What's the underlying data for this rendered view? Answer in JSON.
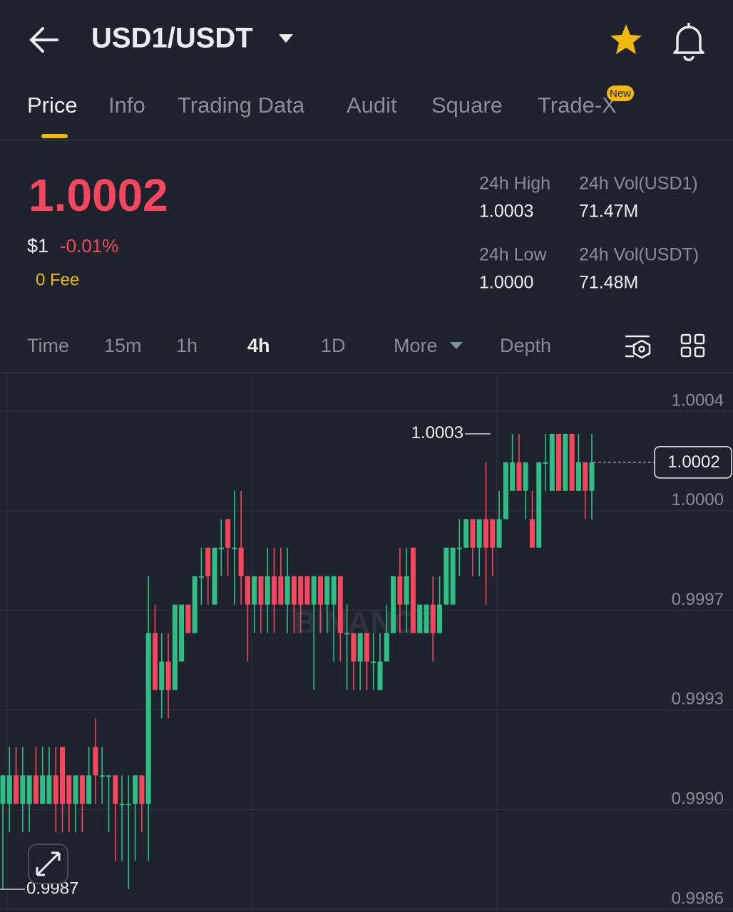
{
  "header": {
    "title": "USD1/USDT"
  },
  "tabs": [
    "Price",
    "Info",
    "Trading Data",
    "Audit",
    "Square",
    "Trade-X"
  ],
  "badge": "New",
  "ticker": {
    "price": "1.0002",
    "usd": "$1",
    "change": "-0.01%",
    "fee": "0 Fee",
    "stats": [
      {
        "label": "24h High",
        "value": "1.0003"
      },
      {
        "label": "24h Vol(USD1)",
        "value": "71.47M"
      },
      {
        "label": "24h Low",
        "value": "1.0000"
      },
      {
        "label": "24h Vol(USDT)",
        "value": "71.48M"
      }
    ]
  },
  "intervals": [
    "Time",
    "15m",
    "1h",
    "4h",
    "1D",
    "More",
    "Depth"
  ],
  "chart_data": {
    "type": "candlestick",
    "watermark": "BINANCE",
    "up_color": "#2ebd85",
    "down_color": "#f6465d",
    "ylim": [
      0.99862,
      1.000515
    ],
    "yticks": [
      {
        "value": 1.00038,
        "label": "1.0004"
      },
      {
        "value": 1.00003,
        "label": "1.0000"
      },
      {
        "value": 0.99968,
        "label": "0.9997"
      },
      {
        "value": 0.99933,
        "label": "0.9993"
      },
      {
        "value": 0.99898,
        "label": "0.9990"
      },
      {
        "value": 0.99863,
        "label": "0.9986"
      }
    ],
    "grid": true,
    "max_label": 1.0003,
    "min_label": 0.9987,
    "last_price": 1.0002,
    "open": [
      0.999,
      0.999,
      0.9991,
      0.999,
      0.999,
      0.9991,
      0.999,
      0.999,
      0.9991,
      0.9992,
      0.9991,
      0.999,
      0.9991,
      0.999,
      0.9992,
      0.9991,
      0.9991,
      0.9991,
      0.999,
      0.999,
      0.999,
      0.9991,
      0.999,
      0.9996,
      0.9994,
      0.9995,
      0.9994,
      0.9995,
      0.9997,
      0.9996,
      0.9998,
      0.9999,
      0.9997,
      0.9999,
      1.0,
      0.9999,
      0.9999,
      0.9998,
      0.9997,
      0.9998,
      0.9997,
      0.9998,
      0.9998,
      0.9997,
      0.9998,
      0.9998,
      0.9998,
      0.9997,
      0.9998,
      0.9997,
      0.9997,
      0.9998,
      0.9996,
      0.9996,
      0.9995,
      0.9996,
      0.9995,
      0.9994,
      0.9995,
      0.9996,
      0.9998,
      0.9997,
      0.9999,
      0.9996,
      0.9996,
      0.9997,
      0.9996,
      0.9997,
      0.9997,
      0.9999,
      0.9999,
      1.0,
      0.9999,
      1.0,
      1.0,
      0.9999,
      1.0,
      1.0001,
      1.0002,
      1.0001,
      1.0,
      0.9999,
      1.0002,
      1.0001,
      1.0003,
      1.0001,
      1.0003,
      1.0001,
      1.0002,
      1.0001
    ],
    "high": [
      0.9991,
      0.9992,
      0.9992,
      0.9992,
      0.9991,
      0.9992,
      0.9992,
      0.9992,
      0.9992,
      0.9992,
      0.9991,
      0.9991,
      0.9991,
      0.9992,
      0.9993,
      0.9992,
      0.9991,
      0.9991,
      0.9991,
      0.9991,
      0.9991,
      0.9991,
      0.9998,
      0.9997,
      0.9996,
      0.9996,
      0.9997,
      0.9997,
      0.9997,
      0.9998,
      0.9999,
      0.9999,
      0.9999,
      1.0,
      1.0,
      1.0001,
      1.0001,
      0.9998,
      0.9998,
      0.9998,
      0.9999,
      0.9999,
      0.9999,
      0.9999,
      0.9998,
      0.9998,
      0.9998,
      0.9998,
      0.9998,
      0.9998,
      0.9998,
      0.9998,
      0.9997,
      0.9996,
      0.9996,
      0.9996,
      0.9996,
      0.9996,
      0.9997,
      0.9998,
      0.9999,
      0.9999,
      0.9999,
      0.9997,
      0.9997,
      0.9998,
      0.9998,
      0.9999,
      0.9999,
      1.0,
      1.0,
      1.0,
      1.0,
      1.0002,
      1.0,
      1.0001,
      1.0002,
      1.0003,
      1.0003,
      1.0002,
      1.0001,
      1.0002,
      1.0003,
      1.0003,
      1.0003,
      1.0003,
      1.0003,
      1.0003,
      1.0002,
      1.0003
    ],
    "low": [
      0.9987,
      0.9989,
      0.999,
      0.9989,
      0.9989,
      0.999,
      0.999,
      0.999,
      0.9989,
      0.9989,
      0.9989,
      0.9989,
      0.9989,
      0.999,
      0.999,
      0.999,
      0.9989,
      0.9988,
      0.9988,
      0.9987,
      0.9988,
      0.9989,
      0.9988,
      0.9994,
      0.9993,
      0.9993,
      0.9994,
      0.9995,
      0.9996,
      0.9996,
      0.9997,
      0.9997,
      0.9997,
      0.9998,
      0.9998,
      0.9997,
      0.9997,
      0.9995,
      0.9996,
      0.9996,
      0.9996,
      0.9996,
      0.9997,
      0.9996,
      0.9996,
      0.9996,
      0.9997,
      0.9994,
      0.9996,
      0.9996,
      0.9995,
      0.9995,
      0.9994,
      0.9994,
      0.9994,
      0.9994,
      0.9994,
      0.9994,
      0.9995,
      0.9996,
      0.9996,
      0.9996,
      0.9996,
      0.9996,
      0.9996,
      0.9995,
      0.9996,
      0.9997,
      0.9997,
      0.9998,
      0.9999,
      0.9998,
      0.9998,
      0.9997,
      0.9998,
      0.9999,
      1.0,
      1.0001,
      1.0001,
      1.0,
      0.9999,
      0.9999,
      1.0001,
      1.0001,
      1.0001,
      1.0001,
      1.0001,
      1.0001,
      1.0,
      1.0
    ],
    "close": [
      0.9991,
      0.9991,
      0.999,
      0.9991,
      0.9991,
      0.999,
      0.9991,
      0.9991,
      0.999,
      0.999,
      0.999,
      0.9991,
      0.999,
      0.9991,
      0.9991,
      0.9991,
      0.9991,
      0.999,
      0.999,
      0.999,
      0.9991,
      0.999,
      0.9996,
      0.9994,
      0.9995,
      0.9994,
      0.9997,
      0.9997,
      0.9996,
      0.9998,
      0.9998,
      0.9998,
      0.9999,
      0.9999,
      0.9999,
      0.9999,
      0.9998,
      0.9997,
      0.9998,
      0.9997,
      0.9998,
      0.9997,
      0.9997,
      0.9998,
      0.9997,
      0.9997,
      0.9997,
      0.9998,
      0.9997,
      0.9998,
      0.9998,
      0.9996,
      0.9996,
      0.9995,
      0.9996,
      0.9995,
      0.9995,
      0.9995,
      0.9996,
      0.9998,
      0.9997,
      0.9998,
      0.9996,
      0.9997,
      0.9997,
      0.9996,
      0.9997,
      0.9999,
      0.9999,
      0.9999,
      1.0,
      0.9999,
      1.0,
      0.9999,
      0.9999,
      1.0,
      1.0002,
      1.0002,
      1.0001,
      1.0002,
      0.9999,
      1.0002,
      1.0002,
      1.0003,
      1.0001,
      1.0003,
      1.0001,
      1.0002,
      1.0001,
      1.0002
    ]
  }
}
